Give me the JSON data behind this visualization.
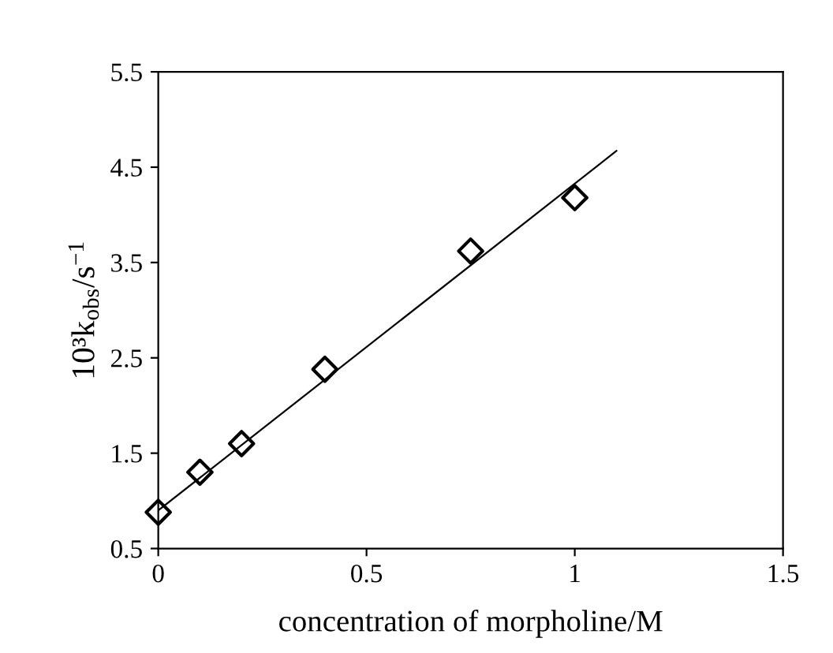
{
  "chart_data": {
    "type": "scatter",
    "xlabel": "concentration of morpholine/M",
    "ylabel": "10³k$_{obs}$/s$^{−1}$",
    "xlim": [
      0,
      1.5
    ],
    "ylim": [
      0.5,
      5.5
    ],
    "xticks": [
      0,
      0.5,
      1,
      1.5
    ],
    "yticks": [
      0.5,
      1.5,
      2.5,
      3.5,
      4.5,
      5.5
    ],
    "grid": false,
    "legend": false,
    "series": [
      {
        "color": "#000000",
        "marker": "diamond",
        "x": [
          0,
          0.1,
          0.2,
          0.4,
          0.75,
          1.0
        ],
        "values": [
          0.88,
          1.3,
          1.6,
          2.38,
          3.62,
          4.18
        ]
      },
      {
        "type": "line",
        "color": "#000000",
        "marker": "none",
        "line_style": "solid",
        "x": [
          0,
          1.1
        ],
        "values": [
          0.9,
          4.67
        ]
      }
    ]
  }
}
